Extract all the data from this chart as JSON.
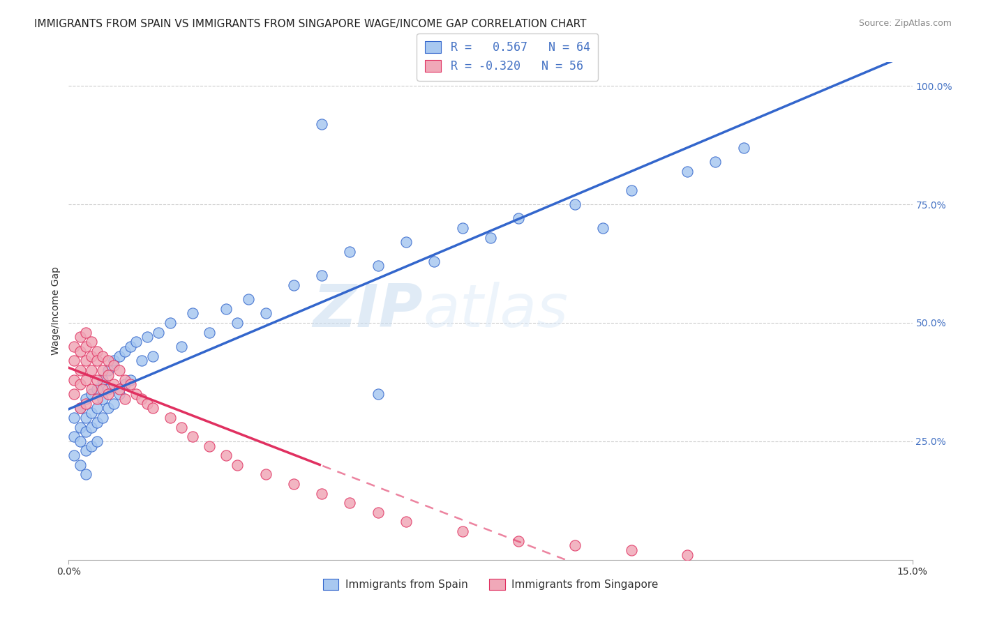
{
  "title": "IMMIGRANTS FROM SPAIN VS IMMIGRANTS FROM SINGAPORE WAGE/INCOME GAP CORRELATION CHART",
  "source": "Source: ZipAtlas.com",
  "ylabel": "Wage/Income Gap",
  "xlim": [
    0.0,
    0.15
  ],
  "ylim": [
    0.0,
    1.05
  ],
  "ytick_labels_right": [
    "25.0%",
    "50.0%",
    "75.0%",
    "100.0%"
  ],
  "ytick_vals_right": [
    0.25,
    0.5,
    0.75,
    1.0
  ],
  "r_spain": 0.567,
  "n_spain": 64,
  "r_singapore": -0.32,
  "n_singapore": 56,
  "color_spain": "#A8C8F0",
  "color_singapore": "#F0A8B8",
  "color_spain_line": "#3366CC",
  "color_singapore_line": "#E03060",
  "color_text_blue": "#4472C4",
  "watermark_zip": "ZIP",
  "watermark_atlas": "atlas",
  "background_color": "#FFFFFF",
  "grid_color": "#CCCCCC",
  "title_fontsize": 11,
  "axis_label_fontsize": 10,
  "tick_fontsize": 10,
  "legend_fontsize": 12,
  "spain_x": [
    0.001,
    0.001,
    0.001,
    0.002,
    0.002,
    0.002,
    0.002,
    0.003,
    0.003,
    0.003,
    0.003,
    0.003,
    0.004,
    0.004,
    0.004,
    0.004,
    0.005,
    0.005,
    0.005,
    0.005,
    0.006,
    0.006,
    0.006,
    0.007,
    0.007,
    0.007,
    0.008,
    0.008,
    0.009,
    0.009,
    0.01,
    0.01,
    0.011,
    0.011,
    0.012,
    0.013,
    0.014,
    0.015,
    0.016,
    0.018,
    0.02,
    0.022,
    0.025,
    0.028,
    0.03,
    0.032,
    0.035,
    0.04,
    0.045,
    0.05,
    0.055,
    0.06,
    0.065,
    0.07,
    0.075,
    0.08,
    0.09,
    0.095,
    0.1,
    0.11,
    0.115,
    0.12,
    0.055,
    0.045
  ],
  "spain_y": [
    0.3,
    0.26,
    0.22,
    0.32,
    0.28,
    0.25,
    0.2,
    0.34,
    0.3,
    0.27,
    0.23,
    0.18,
    0.35,
    0.31,
    0.28,
    0.24,
    0.36,
    0.32,
    0.29,
    0.25,
    0.38,
    0.34,
    0.3,
    0.4,
    0.36,
    0.32,
    0.42,
    0.33,
    0.43,
    0.35,
    0.44,
    0.37,
    0.45,
    0.38,
    0.46,
    0.42,
    0.47,
    0.43,
    0.48,
    0.5,
    0.45,
    0.52,
    0.48,
    0.53,
    0.5,
    0.55,
    0.52,
    0.58,
    0.6,
    0.65,
    0.62,
    0.67,
    0.63,
    0.7,
    0.68,
    0.72,
    0.75,
    0.7,
    0.78,
    0.82,
    0.84,
    0.87,
    0.35,
    0.92
  ],
  "singapore_x": [
    0.001,
    0.001,
    0.001,
    0.001,
    0.002,
    0.002,
    0.002,
    0.002,
    0.002,
    0.003,
    0.003,
    0.003,
    0.003,
    0.003,
    0.004,
    0.004,
    0.004,
    0.004,
    0.005,
    0.005,
    0.005,
    0.005,
    0.006,
    0.006,
    0.006,
    0.007,
    0.007,
    0.007,
    0.008,
    0.008,
    0.009,
    0.009,
    0.01,
    0.01,
    0.011,
    0.012,
    0.013,
    0.014,
    0.015,
    0.018,
    0.02,
    0.022,
    0.025,
    0.028,
    0.03,
    0.035,
    0.04,
    0.045,
    0.05,
    0.055,
    0.06,
    0.07,
    0.08,
    0.09,
    0.1,
    0.11
  ],
  "singapore_y": [
    0.45,
    0.42,
    0.38,
    0.35,
    0.47,
    0.44,
    0.4,
    0.37,
    0.32,
    0.48,
    0.45,
    0.42,
    0.38,
    0.33,
    0.46,
    0.43,
    0.4,
    0.36,
    0.44,
    0.42,
    0.38,
    0.34,
    0.43,
    0.4,
    0.36,
    0.42,
    0.39,
    0.35,
    0.41,
    0.37,
    0.4,
    0.36,
    0.38,
    0.34,
    0.37,
    0.35,
    0.34,
    0.33,
    0.32,
    0.3,
    0.28,
    0.26,
    0.24,
    0.22,
    0.2,
    0.18,
    0.16,
    0.14,
    0.12,
    0.1,
    0.08,
    0.06,
    0.04,
    0.03,
    0.02,
    0.01
  ]
}
